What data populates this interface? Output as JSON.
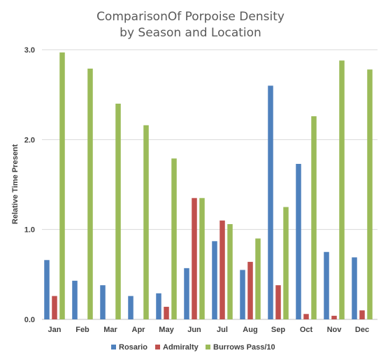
{
  "chart_data": {
    "type": "bar",
    "title_line1": "ComparisonOf Porpoise Density",
    "title_line2": "by Season and Location",
    "xlabel": "",
    "ylabel": "Relative Time Present",
    "ylim": [
      0,
      3.0
    ],
    "yticks": [
      "0.0",
      "1.0",
      "2.0",
      "3.0"
    ],
    "grid": true,
    "legend_position": "bottom",
    "categories": [
      "Jan",
      "Feb",
      "Mar",
      "Apr",
      "May",
      "Jun",
      "Jul",
      "Aug",
      "Sep",
      "Oct",
      "Nov",
      "Dec"
    ],
    "series": [
      {
        "name": "Rosario",
        "color": "#4f81bd",
        "values": [
          0.66,
          0.43,
          0.38,
          0.26,
          0.29,
          0.57,
          0.87,
          0.55,
          2.6,
          1.73,
          0.75,
          0.69
        ]
      },
      {
        "name": "Admiralty",
        "color": "#c0504d",
        "values": [
          0.26,
          0.0,
          0.0,
          0.0,
          0.14,
          1.35,
          1.1,
          0.64,
          0.38,
          0.06,
          0.04,
          0.1
        ]
      },
      {
        "name": "Burrows Pass/10",
        "color": "#9bbb59",
        "values": [
          2.97,
          2.79,
          2.4,
          2.16,
          1.79,
          1.35,
          1.06,
          0.9,
          1.25,
          2.26,
          2.88,
          2.78
        ]
      }
    ]
  }
}
